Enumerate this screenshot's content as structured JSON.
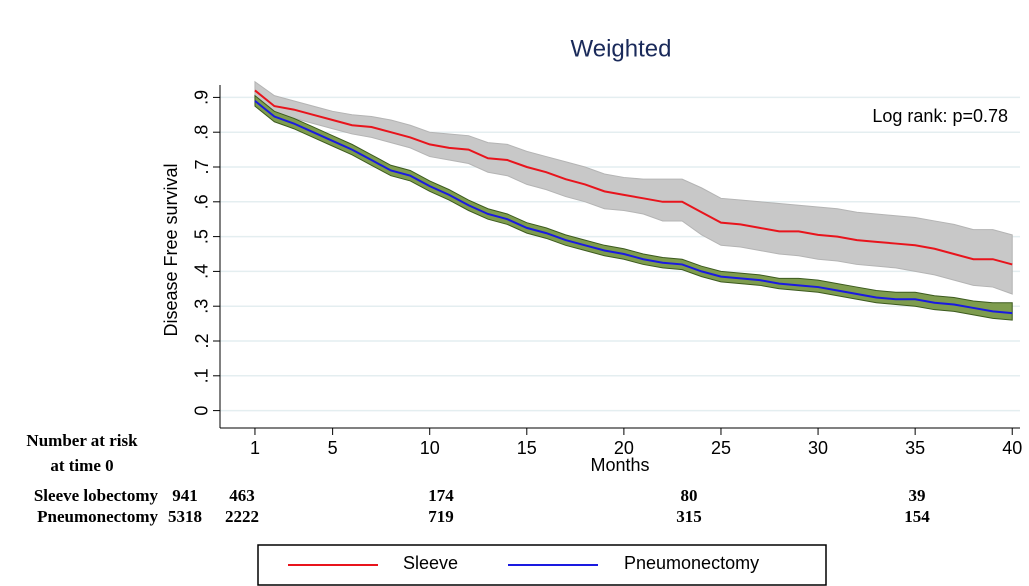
{
  "chart_data": {
    "type": "survival",
    "title": "Weighted",
    "x_label": "Months",
    "y_label": "Disease Free survival",
    "annotation": "Log rank: p=0.78",
    "grid": true,
    "xlim": [
      -0.8,
      40.4
    ],
    "ylim": [
      -0.05,
      0.95
    ],
    "xticks": [
      1,
      5,
      10,
      15,
      20,
      25,
      30,
      35,
      40
    ],
    "yticks": [
      {
        "value": 0,
        "label": "0"
      },
      {
        "value": 0.1,
        "label": ".1"
      },
      {
        "value": 0.2,
        "label": ".2"
      },
      {
        "value": 0.3,
        "label": ".3"
      },
      {
        "value": 0.4,
        "label": ".4"
      },
      {
        "value": 0.5,
        "label": ".5"
      },
      {
        "value": 0.6,
        "label": ".6"
      },
      {
        "value": 0.7,
        "label": ".7"
      },
      {
        "value": 0.8,
        "label": ".8"
      },
      {
        "value": 0.9,
        "label": ".9"
      }
    ],
    "x": [
      1,
      2,
      3,
      4,
      5,
      6,
      7,
      8,
      9,
      10,
      11,
      12,
      13,
      14,
      15,
      16,
      17,
      18,
      19,
      20,
      21,
      22,
      23,
      24,
      25,
      26,
      27,
      28,
      29,
      30,
      31,
      32,
      33,
      34,
      35,
      36,
      37,
      38,
      39,
      40
    ],
    "series": [
      {
        "name": "Sleeve",
        "color": "#e8141c",
        "band_color": "#c8c8c8",
        "band_edge": "#b4b4b4",
        "values": [
          0.92,
          0.875,
          0.865,
          0.85,
          0.835,
          0.82,
          0.815,
          0.8,
          0.785,
          0.765,
          0.755,
          0.75,
          0.725,
          0.72,
          0.7,
          0.685,
          0.665,
          0.65,
          0.63,
          0.62,
          0.61,
          0.6,
          0.6,
          0.57,
          0.54,
          0.535,
          0.525,
          0.515,
          0.515,
          0.505,
          0.5,
          0.49,
          0.485,
          0.48,
          0.475,
          0.465,
          0.45,
          0.435,
          0.435,
          0.42
        ],
        "upper": [
          0.945,
          0.905,
          0.89,
          0.875,
          0.86,
          0.85,
          0.845,
          0.835,
          0.82,
          0.8,
          0.795,
          0.79,
          0.77,
          0.765,
          0.745,
          0.73,
          0.715,
          0.7,
          0.68,
          0.67,
          0.665,
          0.665,
          0.665,
          0.64,
          0.61,
          0.605,
          0.6,
          0.595,
          0.59,
          0.585,
          0.58,
          0.57,
          0.565,
          0.56,
          0.555,
          0.545,
          0.535,
          0.52,
          0.52,
          0.505
        ],
        "lower": [
          0.895,
          0.85,
          0.84,
          0.825,
          0.81,
          0.795,
          0.785,
          0.77,
          0.755,
          0.73,
          0.72,
          0.71,
          0.685,
          0.675,
          0.65,
          0.635,
          0.615,
          0.6,
          0.58,
          0.575,
          0.565,
          0.545,
          0.545,
          0.505,
          0.475,
          0.47,
          0.46,
          0.45,
          0.445,
          0.435,
          0.43,
          0.42,
          0.415,
          0.41,
          0.4,
          0.39,
          0.375,
          0.36,
          0.355,
          0.335
        ]
      },
      {
        "name": "Pneumonectomy",
        "color": "#1a1ae0",
        "band_color": "#7e9c4e",
        "band_edge": "#3c5a1e",
        "values": [
          0.89,
          0.845,
          0.825,
          0.8,
          0.775,
          0.75,
          0.72,
          0.69,
          0.675,
          0.645,
          0.62,
          0.59,
          0.565,
          0.55,
          0.525,
          0.51,
          0.49,
          0.475,
          0.46,
          0.45,
          0.435,
          0.425,
          0.42,
          0.4,
          0.385,
          0.38,
          0.375,
          0.365,
          0.36,
          0.355,
          0.345,
          0.335,
          0.325,
          0.32,
          0.32,
          0.31,
          0.305,
          0.295,
          0.285,
          0.28
        ],
        "upper": [
          0.905,
          0.86,
          0.84,
          0.815,
          0.79,
          0.765,
          0.735,
          0.705,
          0.69,
          0.66,
          0.635,
          0.605,
          0.58,
          0.565,
          0.54,
          0.525,
          0.505,
          0.49,
          0.475,
          0.465,
          0.45,
          0.44,
          0.435,
          0.415,
          0.4,
          0.395,
          0.39,
          0.38,
          0.38,
          0.375,
          0.365,
          0.355,
          0.345,
          0.34,
          0.34,
          0.33,
          0.325,
          0.315,
          0.31,
          0.31
        ],
        "lower": [
          0.875,
          0.83,
          0.81,
          0.785,
          0.76,
          0.735,
          0.705,
          0.675,
          0.66,
          0.63,
          0.605,
          0.575,
          0.55,
          0.535,
          0.51,
          0.495,
          0.475,
          0.46,
          0.445,
          0.435,
          0.42,
          0.41,
          0.405,
          0.385,
          0.37,
          0.365,
          0.36,
          0.35,
          0.345,
          0.34,
          0.33,
          0.32,
          0.31,
          0.305,
          0.3,
          0.29,
          0.285,
          0.275,
          0.265,
          0.26
        ]
      }
    ]
  },
  "risk_table": {
    "title_lines": [
      "Number at risk",
      "at time 0"
    ],
    "rows": [
      {
        "label": "Sleeve lobectomy",
        "counts": [
          941,
          463,
          174,
          80,
          39
        ]
      },
      {
        "label": "Pneumonectomy",
        "counts": [
          5318,
          2222,
          719,
          315,
          154
        ]
      }
    ]
  }
}
